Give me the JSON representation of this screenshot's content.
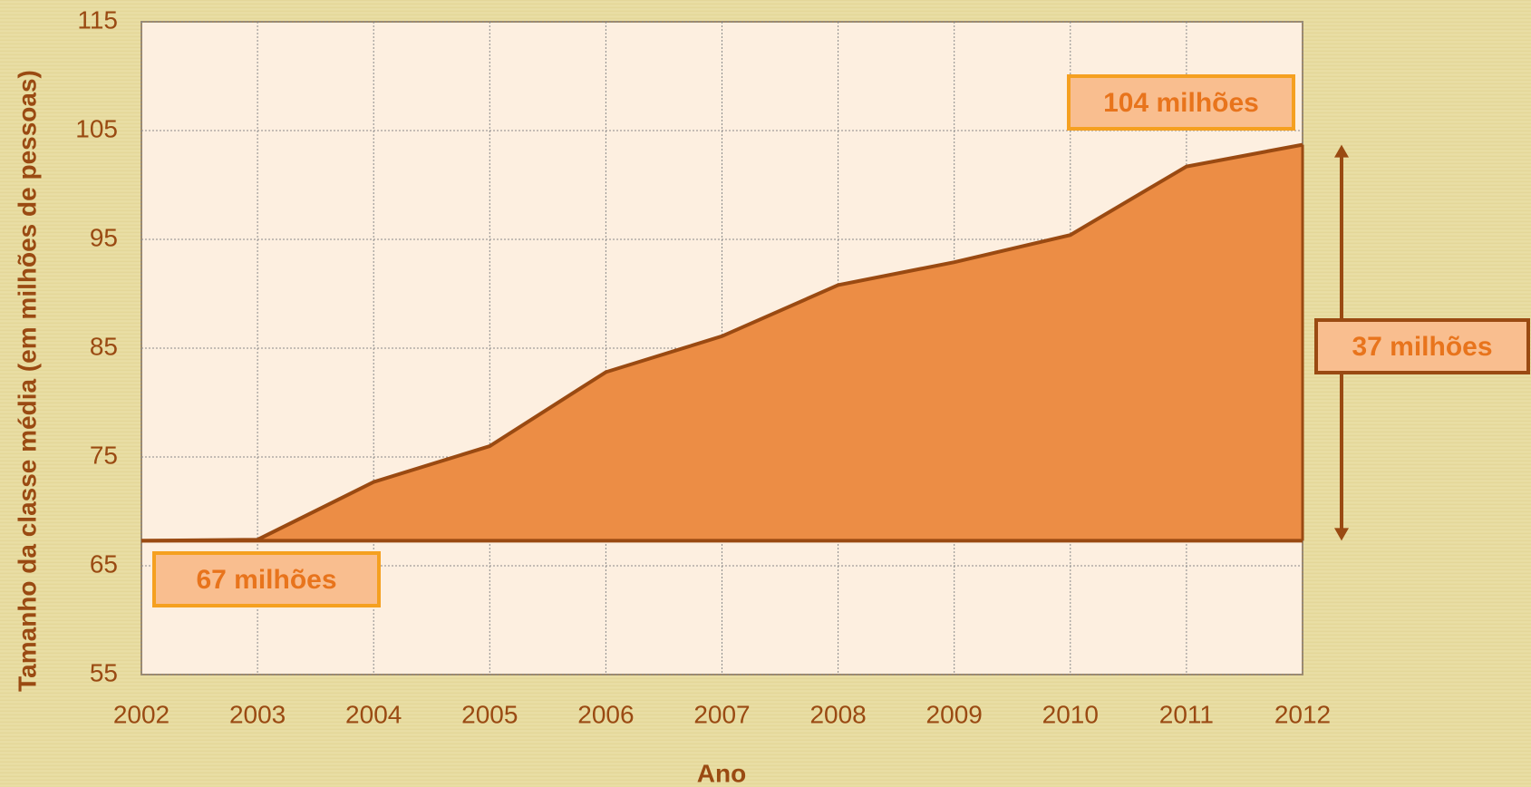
{
  "chart_data": {
    "type": "area",
    "x_label": "Ano",
    "y_label": "Tamanho da classe média (em milhões de pessoas)",
    "x": [
      2002,
      2003,
      2004,
      2005,
      2006,
      2007,
      2008,
      2009,
      2010,
      2011,
      2012
    ],
    "series": [
      {
        "name": "Classe média",
        "color": "#ec8d45",
        "values": [
          67.3,
          67.4,
          72.7,
          76.0,
          82.8,
          86.1,
          90.8,
          92.9,
          95.4,
          101.7,
          103.7
        ]
      }
    ],
    "xlim": [
      2002,
      2012
    ],
    "xticks": [
      2002,
      2003,
      2004,
      2005,
      2006,
      2007,
      2008,
      2009,
      2010,
      2011,
      2012
    ],
    "ylim": [
      55,
      115
    ],
    "yticks": [
      55,
      65,
      75,
      85,
      95,
      105,
      115
    ],
    "grid": true,
    "annotations": [
      {
        "text": "104 milhões"
      },
      {
        "text": "67 milhões"
      },
      {
        "text": "37 milhões"
      }
    ]
  }
}
